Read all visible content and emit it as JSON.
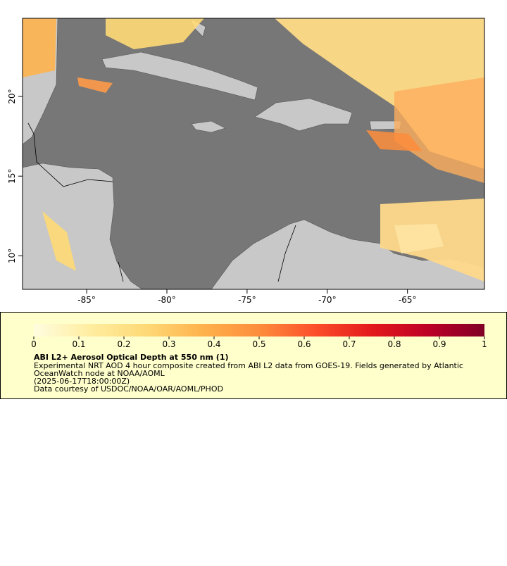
{
  "chart_data": {
    "type": "map",
    "title": "ABI L2+ Aerosol Optical Depth at 550 nm (1)",
    "description_lines": [
      "Experimental NRT AOD 4 hour composite created from ABI L2 data from GOES-19. Fields generated by Atlantic",
      "OceanWatch node at NOAA/AOML",
      "(2025-06-17T18:00:00Z)",
      "Data courtesy of USDOC/NOAA/OAR/AOML/PHOD"
    ],
    "xlim": [
      -89,
      -60.2
    ],
    "ylim": [
      7.9,
      24.9
    ],
    "xticks": [
      {
        "value": -85,
        "label": "-85°"
      },
      {
        "value": -80,
        "label": "-80°"
      },
      {
        "value": -75,
        "label": "-75°"
      },
      {
        "value": -70,
        "label": "-70°"
      },
      {
        "value": -65,
        "label": "-65°"
      }
    ],
    "yticks": [
      {
        "value": 10,
        "label": "10°"
      },
      {
        "value": 15,
        "label": "15°"
      },
      {
        "value": 20,
        "label": "20°"
      }
    ],
    "colorbar": {
      "lim": [
        0,
        1
      ],
      "ticks": [
        0,
        0.1,
        0.2,
        0.3,
        0.4,
        0.5,
        0.6,
        0.7,
        0.8,
        0.9,
        1
      ],
      "colors": [
        "#fffde0",
        "#ffeda0",
        "#fed976",
        "#feb24c",
        "#fd8d3c",
        "#fc4e2a",
        "#e31a1c",
        "#bd0026",
        "#800026"
      ]
    }
  }
}
